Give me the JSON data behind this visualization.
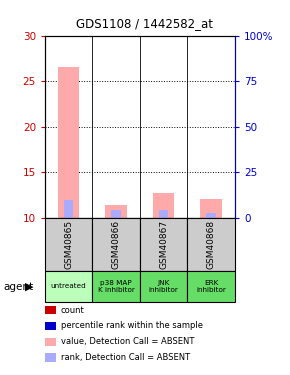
{
  "title": "GDS1108 / 1442582_at",
  "samples": [
    "GSM40865",
    "GSM40866",
    "GSM40867",
    "GSM40868"
  ],
  "agents": [
    "untreated",
    "p38 MAP\nK inhibitor",
    "JNK\ninhibitor",
    "ERK\ninhibitor"
  ],
  "sample_bg_color": "#cccccc",
  "agent_colors": [
    "#bbffbb",
    "#66dd66",
    "#66dd66",
    "#66dd66"
  ],
  "ylim_left": [
    10,
    30
  ],
  "ylim_right": [
    0,
    100
  ],
  "yticks_left": [
    10,
    15,
    20,
    25,
    30
  ],
  "yticks_right": [
    0,
    25,
    50,
    75,
    100
  ],
  "ytick_labels_right": [
    "0",
    "25",
    "50",
    "75",
    "100%"
  ],
  "bars": [
    {
      "x": 0,
      "value_absent": 26.5,
      "rank_absent": 11.9
    },
    {
      "x": 1,
      "value_absent": 11.4,
      "rank_absent": 10.8
    },
    {
      "x": 2,
      "value_absent": 12.7,
      "rank_absent": 10.8
    },
    {
      "x": 3,
      "value_absent": 12.0,
      "rank_absent": 10.5
    }
  ],
  "bar_bottom": 10,
  "bar_width": 0.45,
  "rank_bar_width": 0.2,
  "pink_color": "#ffaaaa",
  "lightblue_color": "#aaaaff",
  "left_tick_color": "#cc0000",
  "right_tick_color": "#0000cc",
  "legend_items": [
    {
      "color": "#cc0000",
      "label": "count"
    },
    {
      "color": "#0000cc",
      "label": "percentile rank within the sample"
    },
    {
      "color": "#ffaaaa",
      "label": "value, Detection Call = ABSENT"
    },
    {
      "color": "#aaaaff",
      "label": "rank, Detection Call = ABSENT"
    }
  ],
  "agent_label": "agent"
}
